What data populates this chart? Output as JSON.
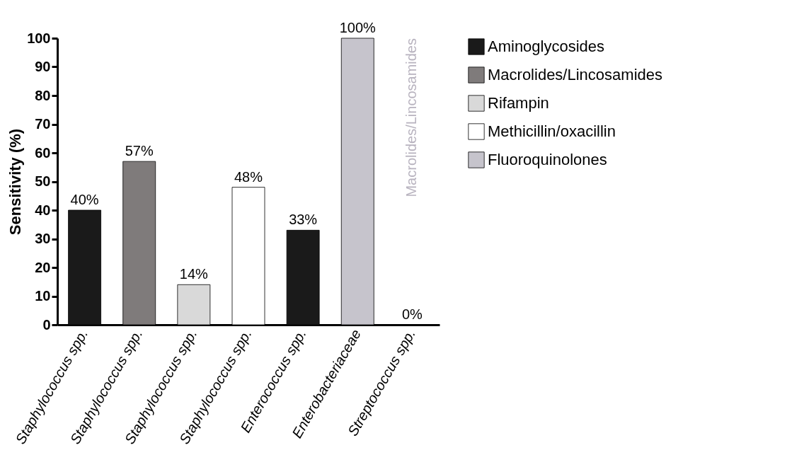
{
  "chart_data": {
    "type": "bar",
    "ylabel": "Sensitivity (%)",
    "categories": [
      "Staphylococcus spp.",
      "Staphylococcus spp.",
      "Staphylococcus spp.",
      "Staphylococcus spp.",
      "Enterococcus spp.",
      "Enterobacteriaceae",
      "Streptococcus spp."
    ],
    "series": [
      {
        "name": "Aminoglycosides",
        "color": "#1a1a1a",
        "values": [
          40,
          null,
          null,
          null,
          33,
          null,
          null
        ],
        "value_labels": [
          "40%",
          null,
          null,
          null,
          "33%",
          null,
          null
        ]
      },
      {
        "name": "Macrolides/Lincosamides",
        "color": "#7f7b7b",
        "values": [
          null,
          57,
          null,
          null,
          null,
          null,
          0
        ],
        "value_labels": [
          null,
          "57%",
          null,
          null,
          null,
          null,
          "0%"
        ]
      },
      {
        "name": "Rifampin",
        "color": "#d9d9d9",
        "values": [
          null,
          null,
          14,
          null,
          null,
          null,
          null
        ],
        "value_labels": [
          null,
          null,
          "14%",
          null,
          null,
          null,
          null
        ]
      },
      {
        "name": "Methicillin/oxacillin",
        "color": "#ffffff",
        "values": [
          null,
          null,
          null,
          48,
          null,
          null,
          null
        ],
        "value_labels": [
          null,
          null,
          null,
          "48%",
          null,
          null,
          null
        ]
      },
      {
        "name": "Fluoroquinolones",
        "color": "#c6c4cc",
        "values": [
          null,
          null,
          null,
          null,
          null,
          100,
          null
        ],
        "value_labels": [
          null,
          null,
          null,
          null,
          null,
          "100%",
          null
        ]
      }
    ],
    "annotations": [
      "Macrolides/Lincosamides"
    ],
    "ylim": [
      0,
      100
    ],
    "yticks": [
      0,
      10,
      20,
      30,
      40,
      50,
      60,
      70,
      80,
      90,
      100
    ],
    "grid": false,
    "legend": "right"
  }
}
